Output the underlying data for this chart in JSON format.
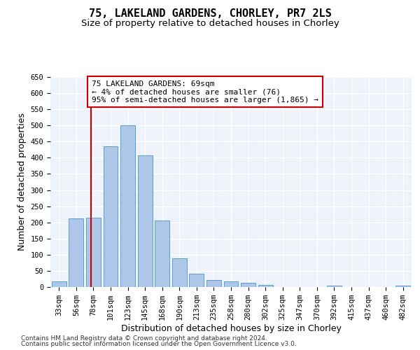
{
  "title": "75, LAKELAND GARDENS, CHORLEY, PR7 2LS",
  "subtitle": "Size of property relative to detached houses in Chorley",
  "xlabel": "Distribution of detached houses by size in Chorley",
  "ylabel": "Number of detached properties",
  "categories": [
    "33sqm",
    "56sqm",
    "78sqm",
    "101sqm",
    "123sqm",
    "145sqm",
    "168sqm",
    "190sqm",
    "213sqm",
    "235sqm",
    "258sqm",
    "280sqm",
    "302sqm",
    "325sqm",
    "347sqm",
    "370sqm",
    "392sqm",
    "415sqm",
    "437sqm",
    "460sqm",
    "482sqm"
  ],
  "values": [
    18,
    213,
    215,
    435,
    500,
    408,
    205,
    88,
    42,
    22,
    17,
    13,
    7,
    0,
    0,
    0,
    5,
    0,
    0,
    0,
    5
  ],
  "bar_color": "#aec6e8",
  "bar_edge_color": "#5a9fd4",
  "background_color": "#eef2fa",
  "grid_color": "#ffffff",
  "property_line_color": "#cc0000",
  "annotation_text": "75 LAKELAND GARDENS: 69sqm\n← 4% of detached houses are smaller (76)\n95% of semi-detached houses are larger (1,865) →",
  "annotation_box_color": "#cc0000",
  "ylim": [
    0,
    650
  ],
  "yticks": [
    0,
    50,
    100,
    150,
    200,
    250,
    300,
    350,
    400,
    450,
    500,
    550,
    600,
    650
  ],
  "footer_line1": "Contains HM Land Registry data © Crown copyright and database right 2024.",
  "footer_line2": "Contains public sector information licensed under the Open Government Licence v3.0.",
  "title_fontsize": 11,
  "subtitle_fontsize": 9.5,
  "axis_label_fontsize": 9,
  "tick_fontsize": 7.5,
  "annotation_fontsize": 8,
  "footer_fontsize": 6.5
}
